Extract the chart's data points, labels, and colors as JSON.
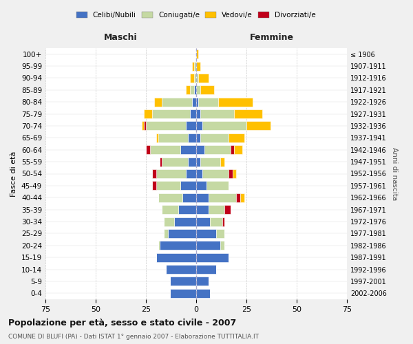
{
  "age_groups": [
    "0-4",
    "5-9",
    "10-14",
    "15-19",
    "20-24",
    "25-29",
    "30-34",
    "35-39",
    "40-44",
    "45-49",
    "50-54",
    "55-59",
    "60-64",
    "65-69",
    "70-74",
    "75-79",
    "80-84",
    "85-89",
    "90-94",
    "95-99",
    "100+"
  ],
  "birth_years": [
    "2002-2006",
    "1997-2001",
    "1992-1996",
    "1987-1991",
    "1982-1986",
    "1977-1981",
    "1972-1976",
    "1967-1971",
    "1962-1966",
    "1957-1961",
    "1952-1956",
    "1947-1951",
    "1942-1946",
    "1937-1941",
    "1932-1936",
    "1927-1931",
    "1922-1926",
    "1917-1921",
    "1912-1916",
    "1907-1911",
    "≤ 1906"
  ],
  "maschi": {
    "celibi": [
      13,
      13,
      15,
      20,
      18,
      14,
      11,
      9,
      7,
      8,
      5,
      4,
      8,
      4,
      5,
      3,
      2,
      1,
      0,
      0,
      0
    ],
    "coniugati": [
      0,
      0,
      0,
      0,
      1,
      2,
      5,
      8,
      12,
      12,
      15,
      13,
      15,
      15,
      20,
      19,
      15,
      2,
      1,
      1,
      0
    ],
    "vedovi": [
      0,
      0,
      0,
      0,
      0,
      0,
      0,
      0,
      0,
      0,
      0,
      0,
      0,
      1,
      1,
      4,
      4,
      2,
      2,
      1,
      0
    ],
    "divorziati": [
      0,
      0,
      0,
      0,
      0,
      0,
      0,
      0,
      0,
      2,
      2,
      1,
      2,
      0,
      1,
      0,
      0,
      0,
      0,
      0,
      0
    ]
  },
  "femmine": {
    "nubili": [
      7,
      6,
      10,
      16,
      12,
      10,
      7,
      6,
      6,
      5,
      3,
      2,
      4,
      2,
      3,
      2,
      1,
      0,
      0,
      0,
      0
    ],
    "coniugate": [
      0,
      0,
      0,
      0,
      2,
      4,
      6,
      8,
      14,
      11,
      13,
      10,
      13,
      14,
      22,
      17,
      10,
      2,
      1,
      0,
      0
    ],
    "vedove": [
      0,
      0,
      0,
      0,
      0,
      0,
      0,
      0,
      2,
      0,
      2,
      2,
      4,
      8,
      12,
      14,
      17,
      7,
      5,
      2,
      1
    ],
    "divorziate": [
      0,
      0,
      0,
      0,
      0,
      0,
      1,
      3,
      2,
      0,
      2,
      0,
      2,
      0,
      0,
      0,
      0,
      0,
      0,
      0,
      0
    ]
  },
  "colors": {
    "celibi": "#4472c4",
    "coniugati": "#c5d9a3",
    "vedovi": "#ffc000",
    "divorziati": "#c0001a"
  },
  "xlim": 75,
  "title": "Popolazione per età, sesso e stato civile - 2007",
  "subtitle": "COMUNE DI BLUFI (PA) - Dati ISTAT 1° gennaio 2007 - Elaborazione TUTTITALIA.IT",
  "ylabel_left": "Fasce di età",
  "ylabel_right": "Anni di nascita",
  "legend_labels": [
    "Celibi/Nubili",
    "Coniugati/e",
    "Vedovi/e",
    "Divorziati/e"
  ],
  "maschi_label": "Maschi",
  "femmine_label": "Femmine",
  "bg_color": "#f0f0f0",
  "plot_bg_color": "#ffffff"
}
